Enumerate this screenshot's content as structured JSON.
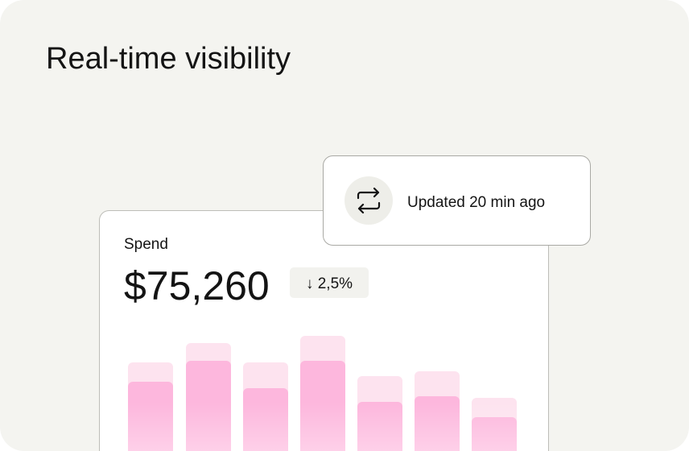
{
  "header": {
    "title": "Real-time visibility"
  },
  "status": {
    "text": "Updated 20 min ago"
  },
  "card": {
    "label": "Spend",
    "amount": "$75,260",
    "change": "↓ 2,5%"
  }
}
